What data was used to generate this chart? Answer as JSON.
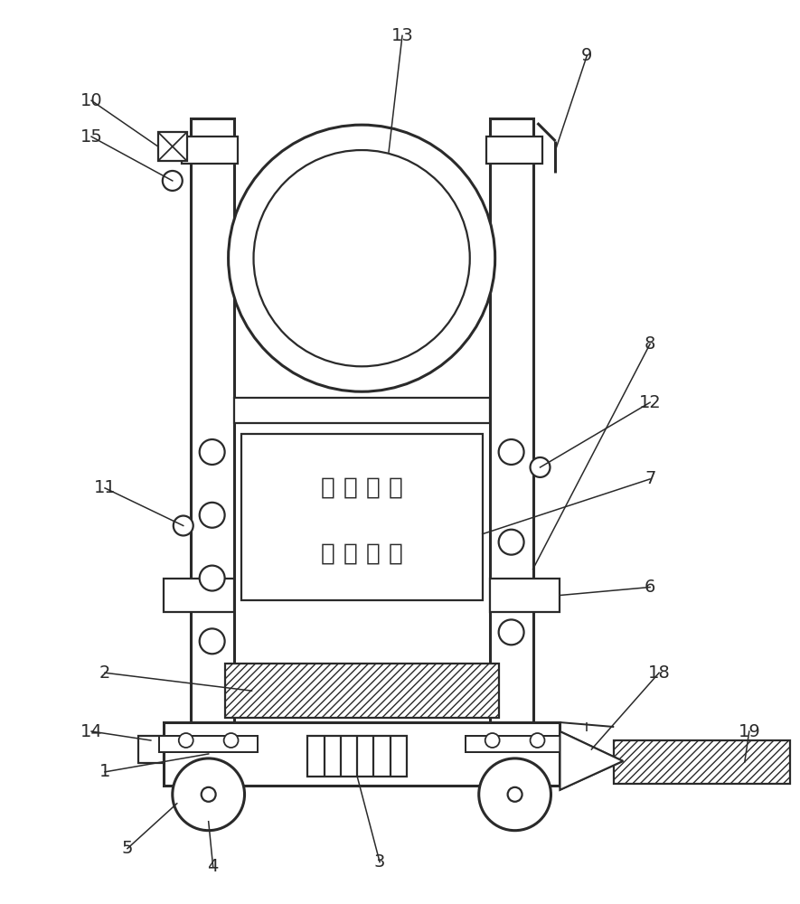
{
  "bg_color": "#ffffff",
  "line_color": "#2a2a2a",
  "sign_text_line1": "前 方 施 工",
  "sign_text_line2": "车 辆 绕 行",
  "lw": 1.6,
  "tlw": 2.2
}
